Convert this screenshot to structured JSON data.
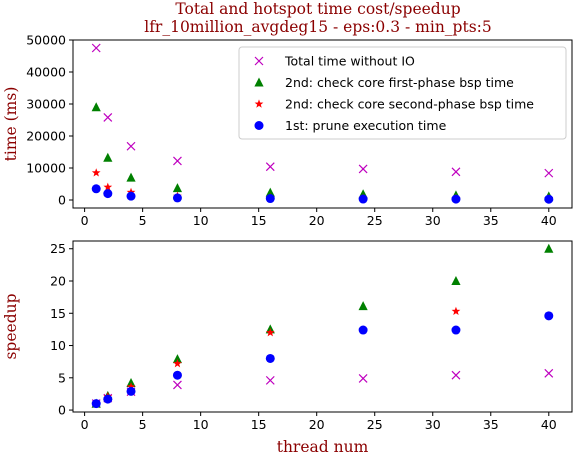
{
  "title_line1": "Total and hotspot time cost/speedup",
  "title_line2": "lfr_10million_avgdeg15 - eps:0.3 - min_pts:5",
  "colors": {
    "total": "#bf00bf",
    "check_first": "#008000",
    "check_second": "#ff0000",
    "prune": "#0000ff",
    "label": "#8b0000"
  },
  "chart_data": [
    {
      "type": "scatter",
      "panel": "top",
      "ylabel": "time (ms)",
      "xlim": [
        -1,
        42
      ],
      "ylim": [
        -2500,
        50000
      ],
      "xticks": [
        0,
        5,
        10,
        15,
        20,
        25,
        30,
        35,
        40
      ],
      "yticks": [
        0,
        10000,
        20000,
        30000,
        40000,
        50000
      ],
      "legend_position": "top-right",
      "series": [
        {
          "name": "Total time without IO",
          "marker": "x",
          "color_key": "total",
          "x": [
            1,
            2,
            4,
            8,
            16,
            24,
            32,
            40
          ],
          "y": [
            47500,
            25800,
            16800,
            12200,
            10400,
            9700,
            8800,
            8400
          ]
        },
        {
          "name": "2nd: check core first-phase bsp time",
          "marker": "triangle",
          "color_key": "check_first",
          "x": [
            1,
            2,
            4,
            8,
            16,
            24,
            32,
            40
          ],
          "y": [
            29000,
            13200,
            7000,
            3700,
            2300,
            1800,
            1450,
            1150
          ]
        },
        {
          "name": "2nd: check core second-phase bsp time",
          "marker": "star",
          "color_key": "check_second",
          "x": [
            1,
            2,
            4,
            8,
            16,
            24,
            32,
            40
          ],
          "y": [
            8500,
            4000,
            2400,
            1200,
            700,
            550,
            500,
            450
          ]
        },
        {
          "name": "1st: prune execution time",
          "marker": "circle",
          "color_key": "prune",
          "x": [
            1,
            2,
            4,
            8,
            16,
            24,
            32,
            40
          ],
          "y": [
            3500,
            2000,
            1200,
            650,
            450,
            300,
            280,
            250
          ]
        }
      ]
    },
    {
      "type": "scatter",
      "panel": "bottom",
      "xlabel": "thread num",
      "ylabel": "speedup",
      "xlim": [
        -1,
        42
      ],
      "ylim": [
        -0.3,
        26.2
      ],
      "xticks": [
        0,
        5,
        10,
        15,
        20,
        25,
        30,
        35,
        40
      ],
      "yticks": [
        0,
        5,
        10,
        15,
        20,
        25
      ],
      "series": [
        {
          "marker": "x",
          "color_key": "total",
          "x": [
            1,
            2,
            4,
            8,
            16,
            24,
            32,
            40
          ],
          "y": [
            1.0,
            1.85,
            2.85,
            3.9,
            4.6,
            4.9,
            5.4,
            5.7
          ]
        },
        {
          "marker": "triangle",
          "color_key": "check_first",
          "x": [
            1,
            2,
            4,
            8,
            16,
            24,
            32,
            40
          ],
          "y": [
            1.0,
            2.2,
            4.2,
            7.9,
            12.5,
            16.1,
            20.0,
            25.0
          ]
        },
        {
          "marker": "star",
          "color_key": "check_second",
          "x": [
            1,
            2,
            4,
            8,
            16,
            24,
            32,
            40
          ],
          "y": [
            1.0,
            2.1,
            3.6,
            7.2,
            12.0,
            12.4,
            15.3,
            14.6
          ]
        },
        {
          "marker": "circle",
          "color_key": "prune",
          "x": [
            1,
            2,
            4,
            8,
            16,
            24,
            32,
            40
          ],
          "y": [
            1.0,
            1.7,
            2.9,
            5.4,
            8.0,
            12.4,
            12.4,
            14.6
          ]
        }
      ]
    }
  ]
}
